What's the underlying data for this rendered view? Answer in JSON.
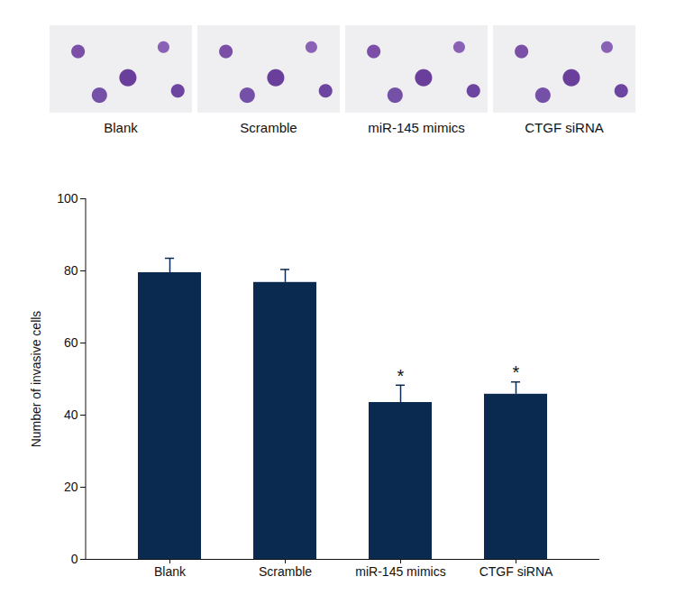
{
  "chart_data": [
    {
      "type": "image",
      "labels": [
        "Blank",
        "Scramble",
        "miR-145 mimics",
        "CTGF siRNA"
      ]
    },
    {
      "type": "bar",
      "categories": [
        "Blank",
        "Scramble",
        "miR-145 mimics",
        "CTGF siRNA"
      ],
      "values": [
        79.5,
        76.8,
        43.5,
        45.8
      ],
      "error": [
        4.0,
        3.6,
        4.8,
        3.4
      ],
      "annotations": [
        null,
        null,
        "*",
        "*"
      ],
      "ylabel": "Number of invasive cells",
      "color": "#0b2a4f",
      "ylim": [
        0,
        100
      ],
      "yticks": [
        0,
        20,
        40,
        60,
        80,
        100
      ],
      "grid": false
    }
  ]
}
